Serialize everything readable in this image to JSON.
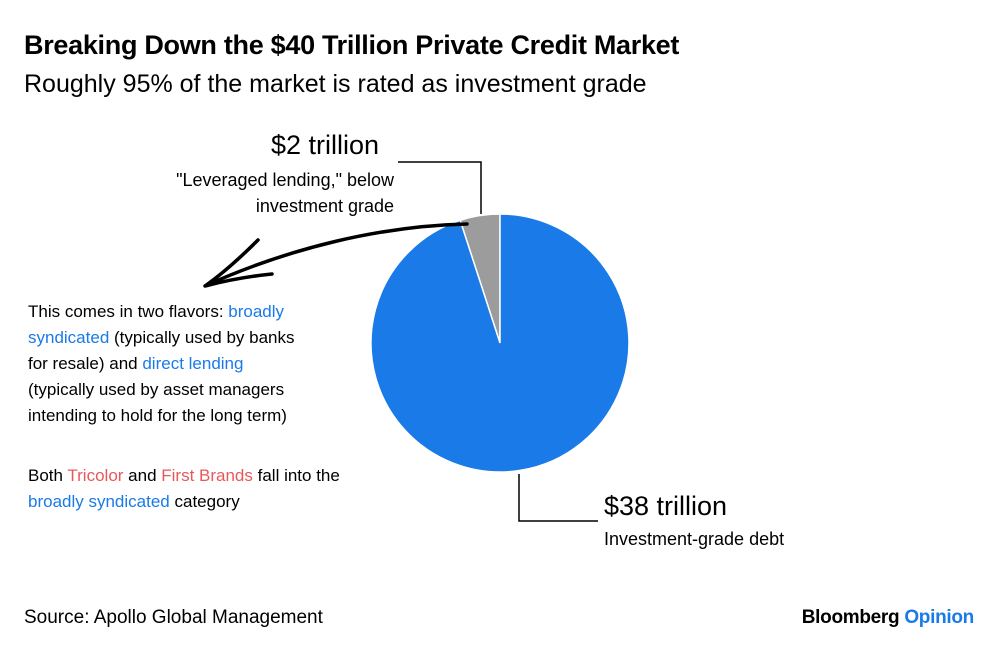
{
  "title": "Breaking Down the $40 Trillion Private Credit Market",
  "subtitle": "Roughly 95% of the market is rated as investment grade",
  "chart_data": {
    "type": "pie",
    "title": "Breaking Down the $40 Trillion Private Credit Market",
    "subtitle": "Roughly 95% of the market is rated as investment grade",
    "slices": [
      {
        "label": "\"Leveraged lending,\" below investment grade",
        "value": 2,
        "value_label": "$2 trillion",
        "color": "#9c9c9c"
      },
      {
        "label": "Investment-grade debt",
        "value": 38,
        "value_label": "$38 trillion",
        "color": "#1a7ae8"
      }
    ],
    "unit": "trillion USD",
    "legend": "none"
  },
  "callouts": {
    "small_value": "$2 trillion",
    "small_desc_1": "\"Leveraged lending,\" below",
    "small_desc_2": "investment grade",
    "large_value": "$38 trillion",
    "large_desc": "Investment-grade debt"
  },
  "note1": {
    "a": "This comes in two flavors: ",
    "b": "broadly",
    "c": "syndicated",
    "d": " (typically used by banks",
    "e": "for resale) and ",
    "f": "direct lending",
    "g": "(typically used by asset managers",
    "h": "intending to hold for the long term)"
  },
  "note2": {
    "a": "Both ",
    "b": "Tricolor",
    "c": " and ",
    "d": "First Brands",
    "e": " fall into the",
    "f": "broadly syndicated",
    "g": " category"
  },
  "source": "Source: Apollo Global Management",
  "brand": {
    "name": "Bloomberg",
    "suffix": "Opinion"
  },
  "colors": {
    "accent_blue": "#1a7ae8",
    "accent_red": "#e8585a",
    "gray": "#9c9c9c"
  }
}
